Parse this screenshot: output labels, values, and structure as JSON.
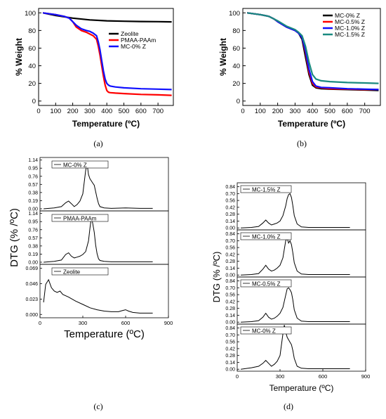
{
  "captions": [
    "(a)",
    "(b)",
    "(c)",
    "(d)"
  ],
  "chart_data": [
    {
      "id": "a",
      "type": "line",
      "xlabel": "Temperature (ºC)",
      "ylabel": "% Weight",
      "xlim": [
        0,
        790
      ],
      "ylim": [
        -5,
        105
      ],
      "xticks": [
        0,
        100,
        200,
        300,
        400,
        500,
        600,
        700
      ],
      "yticks": [
        0,
        20,
        40,
        60,
        80,
        100
      ],
      "legend": "right",
      "series": [
        {
          "name": "Zeolite",
          "color": "#000000",
          "x": [
            25,
            100,
            200,
            300,
            400,
            500,
            600,
            700,
            780
          ],
          "y": [
            100,
            97,
            94,
            92,
            91,
            90.5,
            90.2,
            90,
            89.8
          ]
        },
        {
          "name": "PMAA-PAAm",
          "color": "#ff0000",
          "x": [
            25,
            100,
            150,
            180,
            200,
            220,
            250,
            280,
            300,
            320,
            340,
            350,
            360,
            370,
            380,
            390,
            400,
            410,
            420,
            450,
            500,
            600,
            700,
            780
          ],
          "y": [
            100,
            98,
            96,
            94,
            90,
            84,
            80,
            78,
            76,
            74,
            70,
            62,
            52,
            40,
            28,
            18,
            12,
            10,
            9.5,
            9,
            8.5,
            7.5,
            7,
            6.5
          ]
        },
        {
          "name": "MC-0% Z",
          "color": "#1010ff",
          "x": [
            25,
            100,
            150,
            180,
            200,
            220,
            250,
            280,
            300,
            320,
            340,
            350,
            360,
            370,
            380,
            390,
            400,
            410,
            420,
            450,
            500,
            600,
            700,
            780
          ],
          "y": [
            100,
            98,
            96,
            94,
            90,
            86,
            82,
            80,
            79,
            77,
            74,
            67,
            58,
            46,
            34,
            25,
            20,
            18,
            17,
            16,
            15,
            14,
            13.5,
            13
          ]
        }
      ]
    },
    {
      "id": "b",
      "type": "line",
      "xlabel": "Temperature (ºC)",
      "ylabel": "% Weight",
      "xlim": [
        0,
        790
      ],
      "ylim": [
        -5,
        105
      ],
      "xticks": [
        0,
        100,
        200,
        300,
        400,
        500,
        600,
        700
      ],
      "yticks": [
        0,
        20,
        40,
        60,
        80,
        100
      ],
      "legend": "top-right",
      "series": [
        {
          "name": "MC-0% Z",
          "color": "#000000",
          "x": [
            25,
            100,
            150,
            180,
            200,
            250,
            300,
            320,
            340,
            360,
            380,
            400,
            420,
            450,
            500,
            600,
            700,
            780
          ],
          "y": [
            100,
            98,
            96,
            93,
            90,
            84,
            80,
            77,
            70,
            50,
            30,
            18,
            15,
            14,
            13.5,
            13,
            12.5,
            12
          ]
        },
        {
          "name": "MC-0.5% Z",
          "color": "#ff0000",
          "x": [
            25,
            100,
            150,
            180,
            200,
            250,
            300,
            320,
            340,
            360,
            380,
            400,
            420,
            450,
            500,
            600,
            700,
            780
          ],
          "y": [
            100,
            98,
            96,
            93,
            90,
            84,
            80,
            77,
            72,
            55,
            33,
            20,
            16,
            15,
            14,
            13.5,
            13,
            13
          ]
        },
        {
          "name": "MC-1.0% Z",
          "color": "#1010ff",
          "x": [
            25,
            100,
            150,
            180,
            200,
            250,
            300,
            320,
            340,
            360,
            380,
            400,
            420,
            450,
            500,
            600,
            700,
            780
          ],
          "y": [
            100,
            98,
            96,
            93,
            90,
            84,
            80,
            77,
            72,
            57,
            36,
            22,
            17,
            15.5,
            15,
            14,
            13.5,
            13
          ]
        },
        {
          "name": "MC-1.5% Z",
          "color": "#1a8a80",
          "x": [
            25,
            100,
            150,
            180,
            200,
            250,
            300,
            320,
            340,
            360,
            380,
            400,
            420,
            450,
            500,
            600,
            700,
            780
          ],
          "y": [
            100,
            98,
            96,
            93,
            91,
            85,
            81,
            78,
            74,
            62,
            44,
            30,
            25,
            23,
            22,
            21,
            20.5,
            20
          ]
        }
      ]
    },
    {
      "id": "c",
      "type": "line",
      "xlabel": "Temperature (ºC)",
      "ylabel": "DTG (% /ºC)",
      "xlim": [
        0,
        900
      ],
      "xticks": [
        0,
        300,
        600,
        900
      ],
      "panels": [
        {
          "label": "MC-0% Z",
          "ylim": [
            -0.05,
            1.2
          ],
          "yticks": [
            0.0,
            0.19,
            0.38,
            0.57,
            0.76,
            0.95,
            1.14
          ],
          "x": [
            25,
            100,
            150,
            180,
            200,
            220,
            240,
            260,
            280,
            300,
            320,
            330,
            340,
            350,
            360,
            370,
            380,
            390,
            400,
            410,
            420,
            450,
            500,
            600,
            700,
            790
          ],
          "y": [
            0,
            0.02,
            0.05,
            0.14,
            0.18,
            0.12,
            0.05,
            0.1,
            0.18,
            0.35,
            0.9,
            1.05,
            0.8,
            0.7,
            0.65,
            0.6,
            0.55,
            0.4,
            0.25,
            0.12,
            0.05,
            0.02,
            0.01,
            0.02,
            0.01,
            0.01
          ]
        },
        {
          "label": "PMAA-PAAm",
          "ylim": [
            -0.05,
            1.2
          ],
          "yticks": [
            0.0,
            0.19,
            0.38,
            0.57,
            0.76,
            0.95,
            1.14
          ],
          "x": [
            25,
            100,
            150,
            180,
            200,
            220,
            240,
            260,
            280,
            300,
            320,
            340,
            350,
            360,
            370,
            380,
            390,
            400,
            410,
            420,
            450,
            500,
            600,
            700,
            790
          ],
          "y": [
            0,
            0.02,
            0.05,
            0.18,
            0.22,
            0.14,
            0.1,
            0.12,
            0.14,
            0.18,
            0.25,
            0.5,
            0.8,
            1.05,
            0.9,
            0.7,
            0.4,
            0.2,
            0.08,
            0.04,
            0.02,
            0.01,
            0.01,
            0.01,
            0.01
          ]
        },
        {
          "label": "Zeolite",
          "ylim": [
            -0.005,
            0.075
          ],
          "yticks": [
            0.0,
            0.023,
            0.046,
            0.069
          ],
          "x": [
            25,
            40,
            60,
            80,
            100,
            120,
            140,
            160,
            200,
            250,
            300,
            350,
            400,
            450,
            500,
            550,
            580,
            600,
            620,
            650,
            700,
            790
          ],
          "y": [
            0.018,
            0.045,
            0.052,
            0.04,
            0.035,
            0.033,
            0.035,
            0.03,
            0.026,
            0.02,
            0.015,
            0.01,
            0.007,
            0.005,
            0.004,
            0.004,
            0.006,
            0.007,
            0.005,
            0.003,
            0.002,
            0.002
          ]
        }
      ]
    },
    {
      "id": "d",
      "type": "line",
      "xlabel": "Temperature (ºC)",
      "ylabel": "DTG (% /ºC)",
      "xlim": [
        0,
        900
      ],
      "xticks": [
        0,
        300,
        600,
        900
      ],
      "panels": [
        {
          "label": "MC-1.5% Z",
          "ylim": [
            -0.04,
            0.92
          ],
          "yticks": [
            0.0,
            0.14,
            0.28,
            0.42,
            0.56,
            0.7,
            0.84
          ],
          "x": [
            25,
            100,
            150,
            180,
            200,
            220,
            240,
            260,
            280,
            300,
            320,
            340,
            350,
            360,
            370,
            380,
            390,
            400,
            420,
            450,
            500,
            600,
            790
          ],
          "y": [
            0,
            0.01,
            0.03,
            0.1,
            0.16,
            0.1,
            0.06,
            0.08,
            0.1,
            0.14,
            0.25,
            0.45,
            0.6,
            0.68,
            0.7,
            0.62,
            0.45,
            0.25,
            0.08,
            0.02,
            0.01,
            0.01,
            0.01
          ]
        },
        {
          "label": "MC-1.0% Z",
          "ylim": [
            -0.04,
            0.92
          ],
          "yticks": [
            0.0,
            0.14,
            0.28,
            0.42,
            0.56,
            0.7,
            0.84
          ],
          "x": [
            25,
            100,
            150,
            180,
            200,
            220,
            240,
            260,
            280,
            300,
            320,
            340,
            350,
            360,
            370,
            380,
            390,
            400,
            420,
            450,
            500,
            600,
            790
          ],
          "y": [
            0,
            0.01,
            0.03,
            0.12,
            0.2,
            0.12,
            0.08,
            0.1,
            0.14,
            0.2,
            0.35,
            0.7,
            0.75,
            0.65,
            0.7,
            0.62,
            0.45,
            0.25,
            0.08,
            0.02,
            0.01,
            0.01,
            0.01
          ]
        },
        {
          "label": "MC-0.5% Z",
          "ylim": [
            -0.04,
            0.92
          ],
          "yticks": [
            0.0,
            0.14,
            0.28,
            0.42,
            0.56,
            0.7,
            0.84
          ],
          "x": [
            25,
            100,
            150,
            180,
            200,
            220,
            240,
            260,
            280,
            300,
            320,
            340,
            350,
            360,
            370,
            380,
            390,
            400,
            420,
            450,
            500,
            600,
            790
          ],
          "y": [
            0,
            0.01,
            0.03,
            0.1,
            0.18,
            0.1,
            0.06,
            0.08,
            0.12,
            0.18,
            0.3,
            0.55,
            0.68,
            0.7,
            0.66,
            0.6,
            0.45,
            0.25,
            0.08,
            0.02,
            0.01,
            0.01,
            0.01
          ]
        },
        {
          "label": "MC-0% Z",
          "ylim": [
            -0.04,
            0.92
          ],
          "yticks": [
            0.0,
            0.14,
            0.28,
            0.42,
            0.56,
            0.7,
            0.84
          ],
          "x": [
            25,
            100,
            150,
            180,
            200,
            220,
            240,
            260,
            280,
            300,
            320,
            330,
            340,
            350,
            360,
            370,
            380,
            390,
            400,
            420,
            450,
            500,
            600,
            790
          ],
          "y": [
            0,
            0.03,
            0.06,
            0.12,
            0.18,
            0.12,
            0.06,
            0.1,
            0.16,
            0.28,
            0.72,
            0.9,
            0.76,
            0.65,
            0.6,
            0.55,
            0.5,
            0.38,
            0.22,
            0.06,
            0.02,
            0.01,
            0.01,
            0.01
          ]
        }
      ]
    }
  ]
}
